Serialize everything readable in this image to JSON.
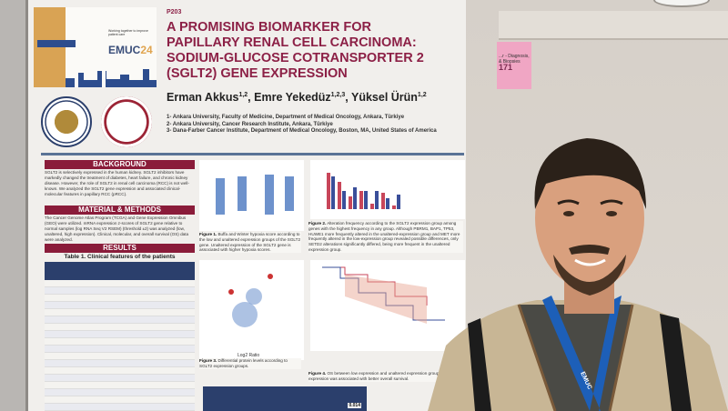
{
  "scene": {
    "colors": {
      "poster_accent": "#8c2046",
      "table_header": "#2b3f6c",
      "lanyard": "#1d5fb8",
      "jacket": "#c8b695"
    }
  },
  "sticky_note": {
    "line1": "...r - Diagnosis,",
    "line2": "& Biopsies",
    "number": "171"
  },
  "poster": {
    "code": "P203",
    "title": [
      "A PROMISING BIOMARKER FOR",
      "PAPILLARY RENAL CELL CARCINOMA:",
      "SODIUM-GLUCOSE COTRANSPORTER 2",
      "(SGLT2) GENE EXPRESSION"
    ],
    "authors": [
      {
        "name": "Erman Akkus",
        "sup": "1,2"
      },
      {
        "name": "Emre Yekedüz",
        "sup": "1,2,3"
      },
      {
        "name": "Yüksel Ürün",
        "sup": "1,2"
      }
    ],
    "affiliations": [
      "1- Ankara University, Faculty of Medicine, Department of Medical Oncology, Ankara, Türkiye",
      "2- Ankara University, Cancer Research Institute, Ankara, Türkiye",
      "3- Dana-Farber Cancer Institute, Department of Medical Oncology, Boston, MA, United States of America"
    ],
    "logo": {
      "brand": "EMUC",
      "year": "24",
      "tagline": "Working together to improve patient care"
    },
    "sections": {
      "background": {
        "heading": "BACKGROUND",
        "text": "SGLT2 is selectively expressed in the human kidney. SGLT2 inhibitors have markedly changed the treatment of diabetes, heart failure, and chronic kidney disease. However, the role of SGLT2 in renal cell carcinoma (RCC) is not well-known. We analyzed the SGLT2 gene expression and associated clinical-molecular features in papillary RCC (pRCC)."
      },
      "methods": {
        "heading": "MATERIAL & METHODS",
        "text": "The Cancer Genome Atlas Program (TCGA) and Gene Expression Omnibus (GEO) were utilized. mRNA expression z-scores of SGLT2 gene relative to normal samples (log RNA Seq V2 RSEM) (threshold ±2) was analyzed (low, unaltered, high expression). Clinical, molecular, and overall survival (OS) data were analyzed."
      },
      "results": {
        "heading": "RESULTS",
        "table_title": "Table 1. Clinical features of the patients"
      }
    },
    "figures": [
      {
        "label": "Figure 1.",
        "caption": "Buffa and Winter hypoxia score according to the low and unaltered expression groups of the SGLT2 gene. Unaltered expression of the SGLT2 gene is associated with higher hypoxia scores."
      },
      {
        "label": "Figure 2.",
        "caption": "Alteration frequency according to the SGLT2 expression group among genes with the highest frequency in any group. Although PBRM1, BAP1, TP53, HUWE1 more frequently altered in the unaltered-expression group and MET more frequently altered in the low-expression group revealed possible differences, only SETD2 alterations significantly differed, being more frequent in the unaltered expression group."
      },
      {
        "label": "Figure 3.",
        "caption": "Differential protein levels according to SGLT2 expression groups.",
        "xlabel": "Log2 Ratio"
      },
      {
        "label": "Figure 4.",
        "caption": "OS between low expression and unaltered expression groups. Low expression was associated with better overall survival."
      }
    ],
    "bottom_table": {
      "p_value": "0.014"
    }
  },
  "person": {
    "lanyard_text": "EMUC"
  }
}
